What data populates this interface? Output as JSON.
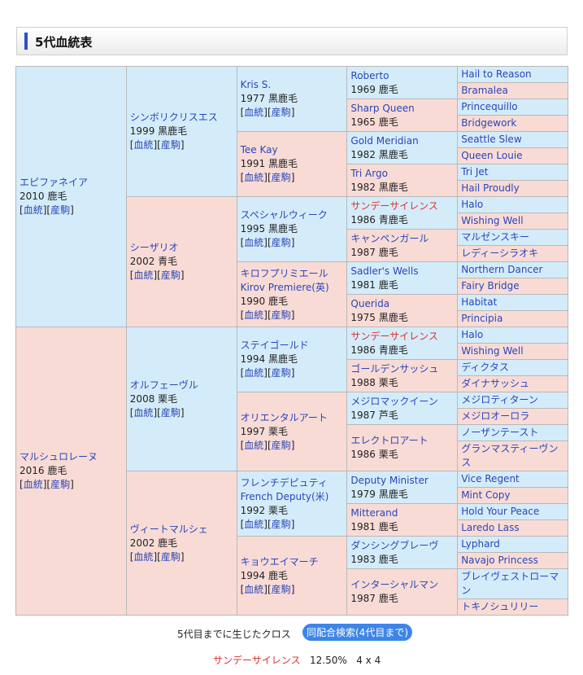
{
  "heading": "5代血統表",
  "links": {
    "pedigree": "血統",
    "offspring": "産駒"
  },
  "gen1": [
    {
      "name": "エピファネイア",
      "year": "2010",
      "color": "鹿毛"
    },
    {
      "name": "マルシュロレーヌ",
      "year": "2016",
      "color": "鹿毛"
    }
  ],
  "gen2": [
    {
      "name": "シンボリクリスエス",
      "year": "1999",
      "color": "黒鹿毛"
    },
    {
      "name": "シーザリオ",
      "year": "2002",
      "color": "青毛"
    },
    {
      "name": "オルフェーヴル",
      "year": "2008",
      "color": "栗毛"
    },
    {
      "name": "ヴィートマルシェ",
      "year": "2002",
      "color": "鹿毛"
    }
  ],
  "gen3": [
    {
      "name": "Kris S.",
      "year": "1977",
      "color": "黒鹿毛"
    },
    {
      "name": "Tee Kay",
      "year": "1991",
      "color": "黒鹿毛"
    },
    {
      "name": "スペシャルウィーク",
      "year": "1995",
      "color": "黒鹿毛"
    },
    {
      "name": "キロフプリミエール",
      "en": "Kirov Premiere(英)",
      "year": "1990",
      "color": "鹿毛"
    },
    {
      "name": "ステイゴールド",
      "year": "1994",
      "color": "黒鹿毛"
    },
    {
      "name": "オリエンタルアート",
      "year": "1997",
      "color": "栗毛"
    },
    {
      "name": "フレンチデピュティ",
      "en": "French Deputy(米)",
      "year": "1992",
      "color": "栗毛"
    },
    {
      "name": "キョウエイマーチ",
      "year": "1994",
      "color": "鹿毛"
    }
  ],
  "gen4": [
    {
      "name": "Roberto",
      "year": "1969",
      "color": "鹿毛"
    },
    {
      "name": "Sharp Queen",
      "year": "1965",
      "color": "鹿毛"
    },
    {
      "name": "Gold Meridian",
      "year": "1982",
      "color": "黒鹿毛"
    },
    {
      "name": "Tri Argo",
      "year": "1982",
      "color": "黒鹿毛"
    },
    {
      "name": "サンデーサイレンス",
      "year": "1986",
      "color": "青鹿毛",
      "cross": true
    },
    {
      "name": "キャンペンガール",
      "year": "1987",
      "color": "鹿毛"
    },
    {
      "name": "Sadler's Wells",
      "year": "1981",
      "color": "鹿毛"
    },
    {
      "name": "Querida",
      "year": "1975",
      "color": "黒鹿毛"
    },
    {
      "name": "サンデーサイレンス",
      "year": "1986",
      "color": "青鹿毛",
      "cross": true
    },
    {
      "name": "ゴールデンサッシュ",
      "year": "1988",
      "color": "栗毛"
    },
    {
      "name": "メジロマックイーン",
      "year": "1987",
      "color": "芦毛"
    },
    {
      "name": "エレクトロアート",
      "year": "1986",
      "color": "栗毛"
    },
    {
      "name": "Deputy Minister",
      "year": "1979",
      "color": "黒鹿毛"
    },
    {
      "name": "Mitterand",
      "year": "1981",
      "color": "鹿毛"
    },
    {
      "name": "ダンシングブレーヴ",
      "year": "1983",
      "color": "鹿毛"
    },
    {
      "name": "インターシャルマン",
      "year": "1987",
      "color": "鹿毛"
    }
  ],
  "gen5": [
    "Hail to Reason",
    "Bramalea",
    "Princequillo",
    "Bridgework",
    "Seattle Slew",
    "Queen Louie",
    "Tri Jet",
    "Hail Proudly",
    "Halo",
    "Wishing Well",
    "マルゼンスキー",
    "レディーシラオキ",
    "Northern Dancer",
    "Fairy Bridge",
    "Habitat",
    "Principia",
    "Halo",
    "Wishing Well",
    "ディクタス",
    "ダイナサッシュ",
    "メジロティターン",
    "メジロオーロラ",
    "ノーザンテースト",
    "グランマスティーヴンス",
    "Vice Regent",
    "Mint Copy",
    "Hold Your Peace",
    "Laredo Lass",
    "Lyphard",
    "Navajo Princess",
    "ブレイヴェストローマン",
    "トキノシュリリー"
  ],
  "cross_section": {
    "label": "5代目までに生じたクロス",
    "search_button": "同配合検索(4代目まで)",
    "crosses": [
      {
        "name": "サンデーサイレンス",
        "percent": "12.50%",
        "gens": "4 x 4"
      }
    ]
  },
  "colors": {
    "male_bg": "#d4ecfa",
    "female_bg": "#f9dbd6",
    "link": "#2846b8",
    "cross": "#e0302a",
    "button": "#3d85e8"
  }
}
